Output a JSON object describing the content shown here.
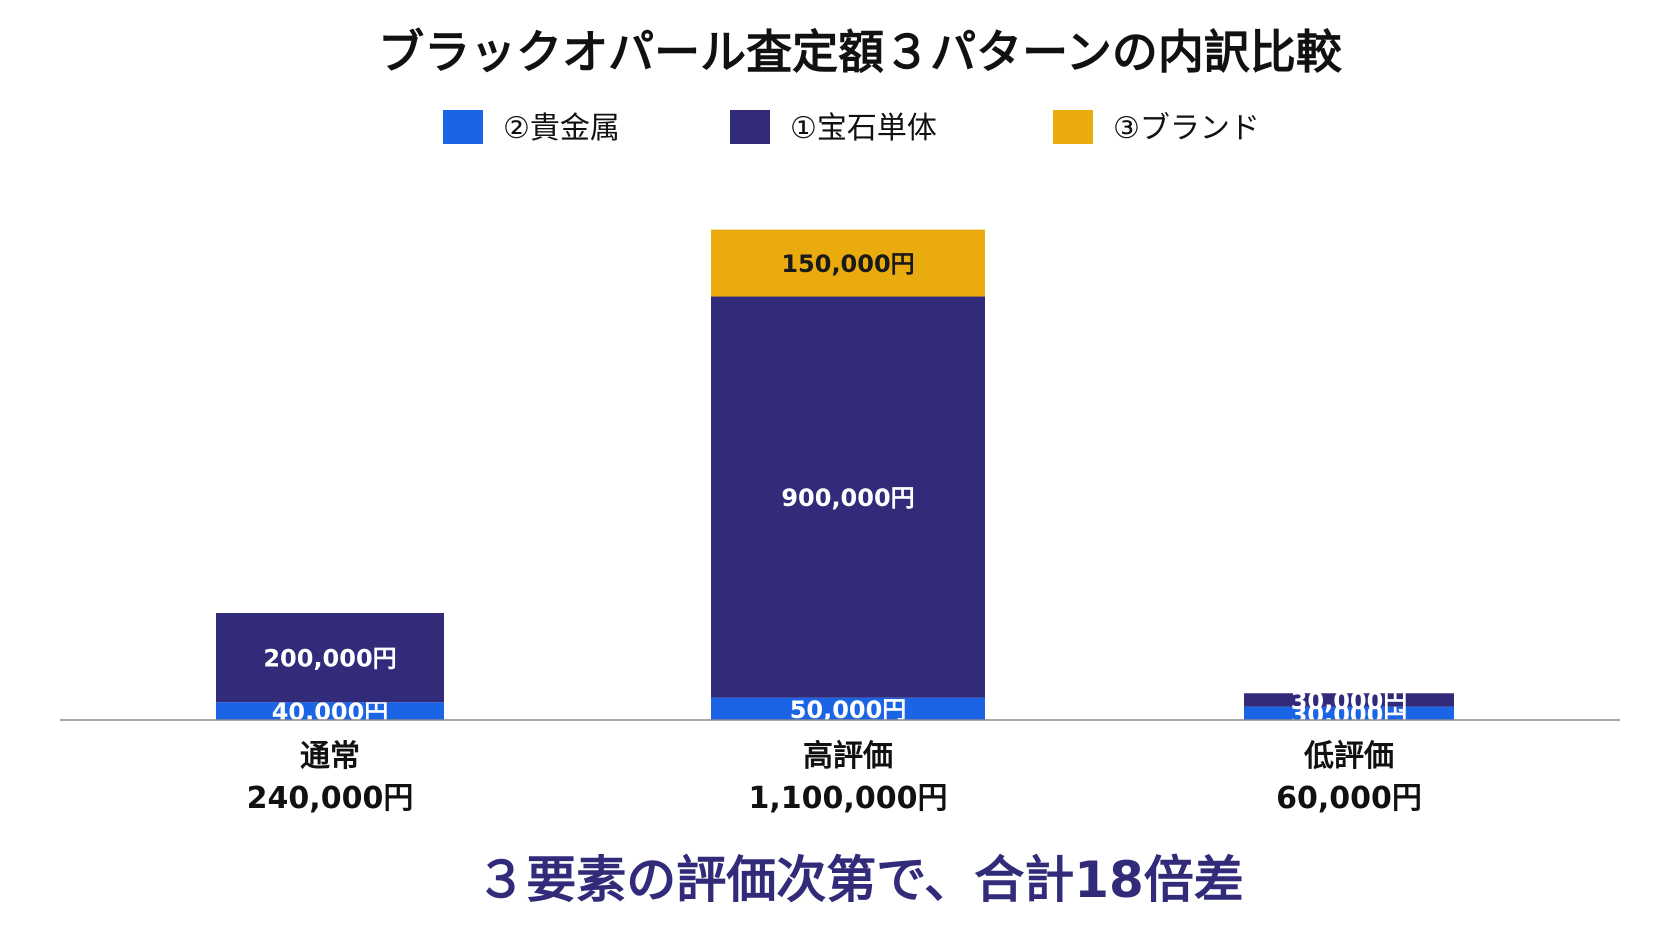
{
  "chart_data": {
    "type": "bar",
    "stacked": true,
    "title": "ブラックオパール査定額３パターンの内訳比較",
    "categories": [
      "通常",
      "高評価",
      "低評価"
    ],
    "category_totals": [
      "240,000円",
      "1,100,000円",
      "60,000円"
    ],
    "series": [
      {
        "name": "②貴金属",
        "color": "#1b64e6",
        "values": [
          40000,
          50000,
          30000
        ],
        "labels": [
          "40,000円",
          "50,000円",
          "30,000円"
        ]
      },
      {
        "name": "①宝石単体",
        "color": "#322b7a",
        "values": [
          200000,
          900000,
          30000
        ],
        "labels": [
          "200,000円",
          "900,000円",
          "30,000円"
        ]
      },
      {
        "name": "③ブランド",
        "color": "#e9ab0e",
        "values": [
          0,
          150000,
          0
        ],
        "labels": [
          "",
          "150,000円",
          ""
        ]
      }
    ],
    "legend_order": [
      0,
      1,
      2
    ],
    "legend_position": "top-center",
    "ylim": [
      0,
      1180000
    ],
    "grid": false,
    "xlabel": "",
    "ylabel": ""
  },
  "summary_text": "３要素の評価次第で、合計18倍差",
  "summary_color": "#322b7a"
}
